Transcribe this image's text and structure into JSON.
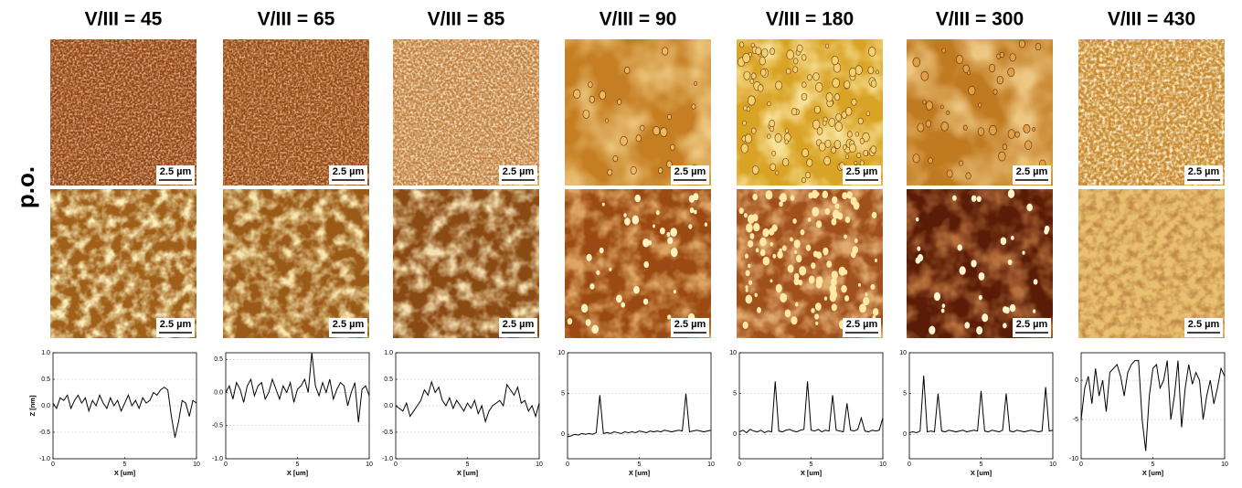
{
  "row_label": "p.o.",
  "panels": [
    {
      "title": "V/III = 45",
      "scale_bars": [
        "2.5 µm",
        "2.5 µm"
      ]
    },
    {
      "title": "V/III = 65",
      "scale_bars": [
        "2.5 µm",
        "2.5 µm"
      ]
    },
    {
      "title": "V/III = 85",
      "scale_bars": [
        "2.5 µm",
        "2.5 µm"
      ]
    },
    {
      "title": "V/III = 90",
      "scale_bars": [
        "2.5 µm",
        "2.5 µm"
      ]
    },
    {
      "title": "V/III = 180",
      "scale_bars": [
        "2.5 µm",
        "2.5 µm"
      ]
    },
    {
      "title": "V/III = 300",
      "scale_bars": [
        "2.5 µm",
        "2.5 µm"
      ]
    },
    {
      "title": "V/III = 430",
      "scale_bars": [
        "2.5 µm",
        "2.5 µm"
      ]
    }
  ],
  "chart_data": [
    {
      "type": "line",
      "xlabel": "X [um]",
      "ylabel": "Z [nm]",
      "color": "#000000",
      "grid": true,
      "x": [
        0,
        0.25,
        0.5,
        0.75,
        1,
        1.25,
        1.5,
        1.75,
        2,
        2.25,
        2.5,
        2.75,
        3,
        3.25,
        3.5,
        3.75,
        4,
        4.25,
        4.5,
        4.75,
        5,
        5.25,
        5.5,
        5.75,
        6,
        6.25,
        6.5,
        6.75,
        7,
        7.25,
        7.5,
        7.75,
        8,
        8.25,
        8.5,
        8.75,
        9,
        9.25,
        9.5,
        9.75,
        10
      ],
      "values": [
        0.05,
        -0.05,
        0.15,
        0.1,
        0.2,
        -0.05,
        0.1,
        0.2,
        0.05,
        0.15,
        -0.1,
        0.1,
        0.0,
        0.2,
        0.05,
        -0.05,
        0.15,
        0.0,
        0.1,
        -0.1,
        0.05,
        0.2,
        0.0,
        0.1,
        -0.05,
        0.15,
        0.05,
        0.1,
        0.25,
        0.2,
        0.3,
        0.35,
        0.3,
        -0.2,
        -0.6,
        -0.3,
        0.1,
        0.05,
        -0.2,
        0.1,
        0.05
      ],
      "xlim": [
        0,
        10
      ],
      "xticks": [
        0,
        5,
        10
      ],
      "ylim": [
        -1,
        1
      ],
      "yticks": [
        {
          "value": -1,
          "label": "-1.0"
        },
        -0.5,
        {
          "value": 0,
          "label": "0.0"
        },
        0.5,
        {
          "value": 1,
          "label": "1.0"
        }
      ]
    },
    {
      "type": "line",
      "xlabel": "X [um]",
      "color": "#000000",
      "grid": true,
      "x": [
        0,
        0.25,
        0.5,
        0.75,
        1,
        1.25,
        1.5,
        1.75,
        2,
        2.25,
        2.5,
        2.75,
        3,
        3.25,
        3.5,
        3.75,
        4,
        4.25,
        4.5,
        4.75,
        5,
        5.25,
        5.5,
        5.75,
        6,
        6.25,
        6.5,
        6.75,
        7,
        7.25,
        7.5,
        7.75,
        8,
        8.25,
        8.5,
        8.75,
        9,
        9.25,
        9.5,
        9.75,
        10
      ],
      "values": [
        0.0,
        0.1,
        -0.1,
        0.15,
        0.05,
        -0.15,
        0.1,
        0.2,
        -0.05,
        0.1,
        0.15,
        -0.1,
        0.0,
        0.2,
        0.05,
        -0.1,
        0.1,
        0.0,
        0.15,
        -0.15,
        0.05,
        0.1,
        0.2,
        0.0,
        0.6,
        0.1,
        -0.05,
        0.15,
        0.0,
        0.2,
        -0.1,
        0.05,
        0.15,
        0.1,
        -0.2,
        0.0,
        0.15,
        -0.45,
        0.05,
        0.1,
        -0.05
      ],
      "xlim": [
        0,
        10
      ],
      "xticks": [
        0,
        5,
        10
      ],
      "ylim": [
        -1,
        0.6
      ],
      "yticks": [
        {
          "value": -1,
          "label": "-1.0"
        },
        -0.5,
        {
          "value": 0,
          "label": "0.0"
        },
        0.5
      ]
    },
    {
      "type": "line",
      "xlabel": "X [um]",
      "color": "#000000",
      "grid": true,
      "x": [
        0,
        0.25,
        0.5,
        0.75,
        1,
        1.25,
        1.5,
        1.75,
        2,
        2.25,
        2.5,
        2.75,
        3,
        3.25,
        3.5,
        3.75,
        4,
        4.25,
        4.5,
        4.75,
        5,
        5.25,
        5.5,
        5.75,
        6,
        6.25,
        6.5,
        6.75,
        7,
        7.25,
        7.5,
        7.75,
        8,
        8.25,
        8.5,
        8.75,
        9,
        9.25,
        9.5,
        9.75,
        10
      ],
      "values": [
        0.0,
        -0.05,
        -0.1,
        0.05,
        -0.2,
        -0.1,
        0.0,
        0.1,
        0.3,
        0.2,
        0.45,
        0.25,
        0.35,
        0.1,
        0.0,
        0.15,
        -0.05,
        0.1,
        0.0,
        -0.1,
        0.05,
        -0.05,
        0.1,
        -0.15,
        0.0,
        -0.3,
        -0.1,
        0.0,
        0.05,
        0.1,
        0.0,
        0.4,
        0.3,
        0.2,
        0.35,
        0.05,
        0.1,
        -0.1,
        0.0,
        -0.2,
        0.05
      ],
      "xlim": [
        0,
        10
      ],
      "xticks": [
        0,
        5,
        10
      ],
      "ylim": [
        -1,
        1
      ],
      "yticks": [
        {
          "value": -1,
          "label": "-1.0"
        },
        -0.5,
        {
          "value": 0,
          "label": "0.0"
        },
        0.5,
        {
          "value": 1,
          "label": "1.0"
        }
      ]
    },
    {
      "type": "line",
      "xlabel": "X [um]",
      "color": "#000000",
      "grid": true,
      "x": [
        0,
        0.25,
        0.5,
        0.75,
        1,
        1.25,
        1.5,
        1.75,
        2,
        2.25,
        2.5,
        2.75,
        3,
        3.25,
        3.5,
        3.75,
        4,
        4.25,
        4.5,
        4.75,
        5,
        5.25,
        5.5,
        5.75,
        6,
        6.25,
        6.5,
        6.75,
        7,
        7.25,
        7.5,
        7.75,
        8,
        8.25,
        8.5,
        8.75,
        9,
        9.25,
        9.5,
        9.75,
        10
      ],
      "values": [
        -0.3,
        -0.2,
        0.0,
        -0.1,
        0.1,
        0.0,
        0.1,
        0.0,
        0.2,
        4.8,
        0.1,
        0.2,
        0.1,
        0.3,
        0.2,
        0.1,
        0.3,
        0.2,
        0.3,
        0.2,
        0.4,
        0.3,
        0.2,
        0.4,
        0.3,
        0.4,
        0.3,
        0.5,
        0.4,
        0.3,
        0.4,
        0.5,
        0.4,
        5.0,
        0.3,
        0.4,
        0.5,
        0.4,
        0.3,
        0.4,
        0.5
      ],
      "xlim": [
        0,
        10
      ],
      "xticks": [
        0,
        5,
        10
      ],
      "ylim": [
        -3,
        10
      ],
      "yticks": [
        0,
        5,
        10
      ]
    },
    {
      "type": "line",
      "xlabel": "X [um]",
      "color": "#000000",
      "grid": true,
      "x": [
        0,
        0.25,
        0.5,
        0.75,
        1,
        1.25,
        1.5,
        1.75,
        2,
        2.25,
        2.5,
        2.75,
        3,
        3.25,
        3.5,
        3.75,
        4,
        4.25,
        4.5,
        4.75,
        5,
        5.25,
        5.5,
        5.75,
        6,
        6.25,
        6.5,
        6.75,
        7,
        7.25,
        7.5,
        7.75,
        8,
        8.25,
        8.5,
        8.75,
        9,
        9.25,
        9.5,
        9.75,
        10
      ],
      "values": [
        0.3,
        0.5,
        0.2,
        0.6,
        0.4,
        0.3,
        0.5,
        0.2,
        0.4,
        0.3,
        6.5,
        0.4,
        0.3,
        0.5,
        0.6,
        0.4,
        0.3,
        0.5,
        0.6,
        6.5,
        0.5,
        0.4,
        0.6,
        0.3,
        0.5,
        0.4,
        4.8,
        0.5,
        0.4,
        0.3,
        3.8,
        0.5,
        0.4,
        0.6,
        2.0,
        0.4,
        0.3,
        0.5,
        0.4,
        0.5,
        2.0
      ],
      "xlim": [
        0,
        10
      ],
      "xticks": [
        0,
        5,
        10
      ],
      "ylim": [
        -3,
        10
      ],
      "yticks": [
        0,
        5,
        10
      ]
    },
    {
      "type": "line",
      "xlabel": "X [um]",
      "color": "#000000",
      "grid": true,
      "x": [
        0,
        0.25,
        0.5,
        0.75,
        1,
        1.25,
        1.5,
        1.75,
        2,
        2.25,
        2.5,
        2.75,
        3,
        3.25,
        3.5,
        3.75,
        4,
        4.25,
        4.5,
        4.75,
        5,
        5.25,
        5.5,
        5.75,
        6,
        6.25,
        6.5,
        6.75,
        7,
        7.25,
        7.5,
        7.75,
        8,
        8.25,
        8.5,
        8.75,
        9,
        9.25,
        9.5,
        9.75,
        10
      ],
      "values": [
        0.2,
        0.3,
        0.2,
        0.4,
        7.2,
        0.3,
        0.4,
        0.3,
        5.0,
        0.4,
        0.3,
        0.5,
        0.4,
        0.3,
        0.4,
        0.5,
        0.3,
        0.4,
        0.5,
        0.4,
        5.3,
        0.4,
        0.3,
        0.5,
        0.4,
        0.3,
        0.5,
        5.0,
        0.4,
        0.3,
        0.5,
        0.4,
        0.3,
        0.4,
        0.5,
        0.4,
        0.3,
        0.4,
        5.8,
        0.4,
        0.5
      ],
      "xlim": [
        0,
        10
      ],
      "xticks": [
        0,
        5,
        10
      ],
      "ylim": [
        -3,
        10
      ],
      "yticks": [
        0,
        5,
        10
      ]
    },
    {
      "type": "line",
      "xlabel": "X [um]",
      "color": "#000000",
      "grid": true,
      "x": [
        0,
        0.25,
        0.5,
        0.75,
        1,
        1.25,
        1.5,
        1.75,
        2,
        2.25,
        2.5,
        2.75,
        3,
        3.25,
        3.5,
        3.75,
        4,
        4.25,
        4.5,
        4.75,
        5,
        5.25,
        5.5,
        5.75,
        6,
        6.25,
        6.5,
        6.75,
        7,
        7.25,
        7.5,
        7.75,
        8,
        8.25,
        8.5,
        8.75,
        9,
        9.25,
        9.5,
        9.75,
        10
      ],
      "values": [
        -5.0,
        -1.0,
        0.5,
        -3.0,
        1.5,
        -2.0,
        0.0,
        -4.0,
        1.0,
        1.5,
        2.0,
        0.5,
        -2.0,
        1.0,
        2.0,
        2.5,
        2.5,
        -5.0,
        -9.0,
        -2.0,
        1.5,
        2.0,
        -1.0,
        0.0,
        2.5,
        -5.0,
        -2.0,
        2.5,
        -6.0,
        -1.0,
        2.0,
        -0.5,
        1.0,
        0.0,
        -5.0,
        -2.0,
        0.0,
        -3.0,
        -1.0,
        1.5,
        0.5
      ],
      "xlim": [
        0,
        10
      ],
      "xticks": [
        0,
        5,
        10
      ],
      "ylim": [
        -10,
        3.5
      ],
      "yticks": [
        -10,
        -5,
        0
      ]
    }
  ]
}
